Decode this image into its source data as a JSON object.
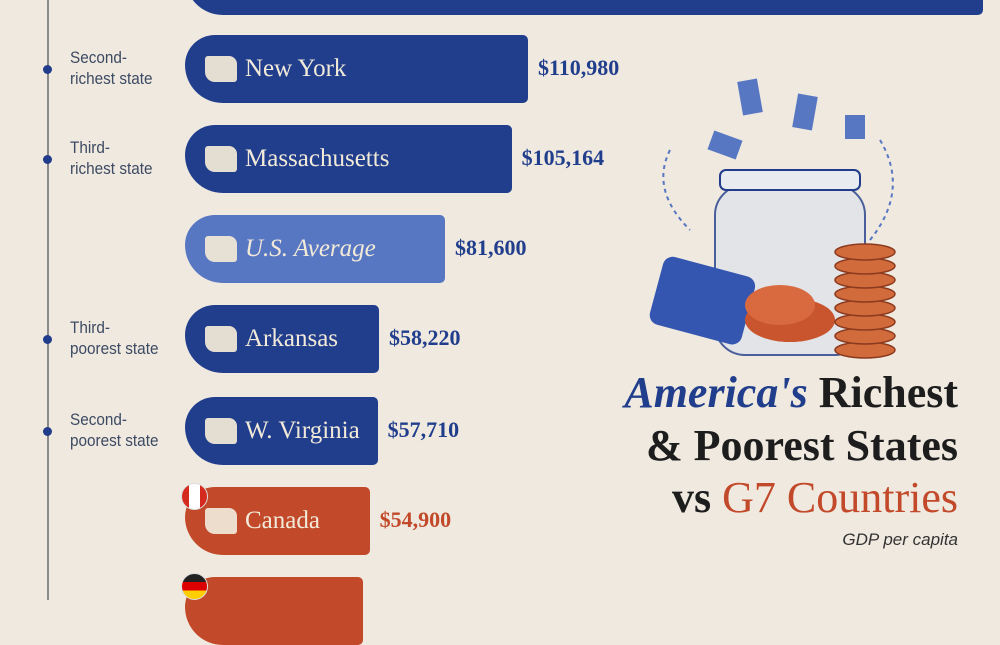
{
  "chart_data": {
    "type": "bar",
    "title": "America's Richest & Poorest States vs G7 Countries",
    "subtitle": "GDP per capita",
    "orientation": "horizontal",
    "bars": [
      {
        "name": "",
        "category": "",
        "value": 272000,
        "value_label": "",
        "kind": "state"
      },
      {
        "name": "New York",
        "category": "Second-richest state",
        "value": 110980,
        "value_label": "$110,980",
        "kind": "state"
      },
      {
        "name": "Massachusetts",
        "category": "Third-richest state",
        "value": 105164,
        "value_label": "$105,164",
        "kind": "state"
      },
      {
        "name": "U.S. Average",
        "category": "",
        "value": 81600,
        "value_label": "$81,600",
        "kind": "average"
      },
      {
        "name": "Arkansas",
        "category": "Third-poorest state",
        "value": 58220,
        "value_label": "$58,220",
        "kind": "state"
      },
      {
        "name": "W. Virginia",
        "category": "Second-poorest state",
        "value": 57710,
        "value_label": "$57,710",
        "kind": "state"
      },
      {
        "name": "Canada",
        "category": "",
        "value": 54900,
        "value_label": "$54,900",
        "kind": "country"
      },
      {
        "name": "",
        "category": "",
        "value": 52700,
        "value_label": "",
        "kind": "country"
      }
    ]
  },
  "title": {
    "line1_accent": "America's",
    "line1_rest": " Richest",
    "line2": "& Poorest States",
    "line3_pre": "vs ",
    "line3_accent": "G7 Countries",
    "subtitle": "GDP per capita"
  },
  "colors": {
    "state": "#213e8d",
    "average": "#5877c2",
    "country": "#c2492a",
    "background": "#efe9df"
  }
}
